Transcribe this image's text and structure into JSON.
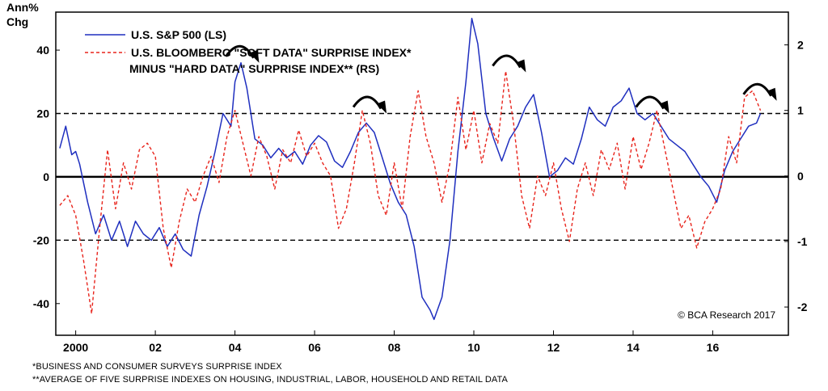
{
  "chart_data": {
    "type": "line",
    "left_axis": {
      "label_line1": "Ann%",
      "label_line2": "Chg",
      "ylim": [
        -50,
        52
      ],
      "ticks": [
        40,
        20,
        0,
        -20,
        -40
      ]
    },
    "right_axis": {
      "ylim": [
        -2.4307,
        2.5
      ],
      "ticks": [
        2,
        1,
        0,
        -1,
        -2
      ]
    },
    "x_axis": {
      "xlim": [
        1999.5,
        2017.9
      ],
      "tick_labels": [
        {
          "x": 2000,
          "label": "2000"
        },
        {
          "x": 2002,
          "label": "02"
        },
        {
          "x": 2004,
          "label": "04"
        },
        {
          "x": 2006,
          "label": "06"
        },
        {
          "x": 2008,
          "label": "08"
        },
        {
          "x": 2010,
          "label": "10"
        },
        {
          "x": 2012,
          "label": "12"
        },
        {
          "x": 2014,
          "label": "14"
        },
        {
          "x": 2016,
          "label": "16"
        }
      ]
    },
    "reference_lines": {
      "left_axis_values": [
        20,
        0,
        -20
      ]
    },
    "series": [
      {
        "name": "U.S. S&P 500 (LS)",
        "axis": "left",
        "color": "#1f2fbf",
        "style": "solid",
        "points": [
          [
            1999.6,
            9
          ],
          [
            1999.75,
            16
          ],
          [
            1999.9,
            7
          ],
          [
            2000.0,
            8
          ],
          [
            2000.1,
            4
          ],
          [
            2000.3,
            -8
          ],
          [
            2000.5,
            -18
          ],
          [
            2000.7,
            -12
          ],
          [
            2000.9,
            -20
          ],
          [
            2001.1,
            -14
          ],
          [
            2001.3,
            -22
          ],
          [
            2001.5,
            -14
          ],
          [
            2001.7,
            -18
          ],
          [
            2001.9,
            -20
          ],
          [
            2002.1,
            -16
          ],
          [
            2002.3,
            -22
          ],
          [
            2002.5,
            -18
          ],
          [
            2002.7,
            -23
          ],
          [
            2002.9,
            -25
          ],
          [
            2003.1,
            -12
          ],
          [
            2003.3,
            -3
          ],
          [
            2003.5,
            8
          ],
          [
            2003.7,
            20
          ],
          [
            2003.9,
            16
          ],
          [
            2004.0,
            30
          ],
          [
            2004.15,
            36
          ],
          [
            2004.3,
            28
          ],
          [
            2004.5,
            12
          ],
          [
            2004.7,
            10
          ],
          [
            2004.9,
            6
          ],
          [
            2005.1,
            9
          ],
          [
            2005.3,
            6
          ],
          [
            2005.5,
            8
          ],
          [
            2005.7,
            4
          ],
          [
            2005.9,
            10
          ],
          [
            2006.1,
            13
          ],
          [
            2006.3,
            11
          ],
          [
            2006.5,
            5
          ],
          [
            2006.7,
            3
          ],
          [
            2006.9,
            8
          ],
          [
            2007.1,
            14
          ],
          [
            2007.3,
            17
          ],
          [
            2007.5,
            14
          ],
          [
            2007.7,
            6
          ],
          [
            2007.9,
            -2
          ],
          [
            2008.1,
            -8
          ],
          [
            2008.3,
            -12
          ],
          [
            2008.5,
            -22
          ],
          [
            2008.7,
            -38
          ],
          [
            2008.9,
            -42
          ],
          [
            2009.0,
            -45
          ],
          [
            2009.2,
            -38
          ],
          [
            2009.4,
            -20
          ],
          [
            2009.6,
            8
          ],
          [
            2009.8,
            30
          ],
          [
            2009.95,
            50
          ],
          [
            2010.1,
            42
          ],
          [
            2010.3,
            20
          ],
          [
            2010.5,
            12
          ],
          [
            2010.7,
            5
          ],
          [
            2010.9,
            12
          ],
          [
            2011.1,
            16
          ],
          [
            2011.3,
            22
          ],
          [
            2011.5,
            26
          ],
          [
            2011.7,
            14
          ],
          [
            2011.9,
            0
          ],
          [
            2012.1,
            2
          ],
          [
            2012.3,
            6
          ],
          [
            2012.5,
            4
          ],
          [
            2012.7,
            12
          ],
          [
            2012.9,
            22
          ],
          [
            2013.1,
            18
          ],
          [
            2013.3,
            16
          ],
          [
            2013.5,
            22
          ],
          [
            2013.7,
            24
          ],
          [
            2013.9,
            28
          ],
          [
            2014.1,
            20
          ],
          [
            2014.3,
            18
          ],
          [
            2014.5,
            20
          ],
          [
            2014.7,
            16
          ],
          [
            2014.9,
            12
          ],
          [
            2015.1,
            10
          ],
          [
            2015.3,
            8
          ],
          [
            2015.5,
            4
          ],
          [
            2015.7,
            0
          ],
          [
            2015.9,
            -3
          ],
          [
            2016.1,
            -8
          ],
          [
            2016.3,
            2
          ],
          [
            2016.5,
            8
          ],
          [
            2016.7,
            12
          ],
          [
            2016.9,
            16
          ],
          [
            2017.1,
            17
          ],
          [
            2017.2,
            20
          ]
        ]
      },
      {
        "name": "U.S. BLOOMBERG \"SOFT DATA\" SURPRISE INDEX* MINUS \"HARD DATA\" SURPRISE INDEX** (RS)",
        "axis": "right",
        "color": "#e8241c",
        "style": "dashed",
        "points": [
          [
            1999.6,
            -0.45
          ],
          [
            1999.8,
            -0.3
          ],
          [
            2000.0,
            -0.6
          ],
          [
            2000.2,
            -1.3
          ],
          [
            2000.4,
            -2.1
          ],
          [
            2000.6,
            -0.8
          ],
          [
            2000.8,
            0.4
          ],
          [
            2001.0,
            -0.5
          ],
          [
            2001.2,
            0.2
          ],
          [
            2001.4,
            -0.2
          ],
          [
            2001.6,
            0.4
          ],
          [
            2001.8,
            0.5
          ],
          [
            2002.0,
            0.3
          ],
          [
            2002.2,
            -0.8
          ],
          [
            2002.4,
            -1.4
          ],
          [
            2002.6,
            -0.7
          ],
          [
            2002.8,
            -0.2
          ],
          [
            2003.0,
            -0.4
          ],
          [
            2003.2,
            0.0
          ],
          [
            2003.4,
            0.3
          ],
          [
            2003.6,
            -0.1
          ],
          [
            2003.8,
            0.6
          ],
          [
            2004.0,
            1.0
          ],
          [
            2004.2,
            0.5
          ],
          [
            2004.4,
            0.0
          ],
          [
            2004.6,
            0.6
          ],
          [
            2004.8,
            0.3
          ],
          [
            2005.0,
            -0.2
          ],
          [
            2005.2,
            0.4
          ],
          [
            2005.4,
            0.2
          ],
          [
            2005.6,
            0.7
          ],
          [
            2005.8,
            0.3
          ],
          [
            2006.0,
            0.5
          ],
          [
            2006.2,
            0.2
          ],
          [
            2006.4,
            0.0
          ],
          [
            2006.6,
            -0.8
          ],
          [
            2006.8,
            -0.5
          ],
          [
            2007.0,
            0.2
          ],
          [
            2007.2,
            1.0
          ],
          [
            2007.4,
            0.5
          ],
          [
            2007.6,
            -0.3
          ],
          [
            2007.8,
            -0.6
          ],
          [
            2008.0,
            0.2
          ],
          [
            2008.2,
            -0.5
          ],
          [
            2008.4,
            0.6
          ],
          [
            2008.6,
            1.3
          ],
          [
            2008.8,
            0.6
          ],
          [
            2009.0,
            0.2
          ],
          [
            2009.2,
            -0.4
          ],
          [
            2009.4,
            0.2
          ],
          [
            2009.6,
            1.2
          ],
          [
            2009.8,
            0.4
          ],
          [
            2010.0,
            1.0
          ],
          [
            2010.2,
            0.2
          ],
          [
            2010.4,
            0.8
          ],
          [
            2010.6,
            0.5
          ],
          [
            2010.8,
            1.6
          ],
          [
            2011.0,
            0.8
          ],
          [
            2011.2,
            -0.3
          ],
          [
            2011.4,
            -0.8
          ],
          [
            2011.6,
            0.0
          ],
          [
            2011.8,
            -0.3
          ],
          [
            2012.0,
            0.2
          ],
          [
            2012.2,
            -0.5
          ],
          [
            2012.4,
            -1.0
          ],
          [
            2012.6,
            -0.2
          ],
          [
            2012.8,
            0.2
          ],
          [
            2013.0,
            -0.3
          ],
          [
            2013.2,
            0.4
          ],
          [
            2013.4,
            0.1
          ],
          [
            2013.6,
            0.5
          ],
          [
            2013.8,
            -0.2
          ],
          [
            2014.0,
            0.6
          ],
          [
            2014.2,
            0.1
          ],
          [
            2014.4,
            0.5
          ],
          [
            2014.6,
            1.0
          ],
          [
            2014.8,
            0.4
          ],
          [
            2015.0,
            -0.2
          ],
          [
            2015.2,
            -0.8
          ],
          [
            2015.4,
            -0.6
          ],
          [
            2015.6,
            -1.1
          ],
          [
            2015.8,
            -0.7
          ],
          [
            2016.0,
            -0.5
          ],
          [
            2016.2,
            -0.2
          ],
          [
            2016.4,
            0.6
          ],
          [
            2016.6,
            0.2
          ],
          [
            2016.8,
            1.2
          ],
          [
            2017.0,
            1.3
          ],
          [
            2017.2,
            1.0
          ]
        ]
      }
    ],
    "annotations": [
      {
        "type": "curved-arrow",
        "x": 2004.1,
        "y": 36
      },
      {
        "type": "curved-arrow",
        "x": 2007.3,
        "y": 20
      },
      {
        "type": "curved-arrow",
        "x": 2010.8,
        "y": 33
      },
      {
        "type": "curved-arrow",
        "x": 2014.4,
        "y": 20
      },
      {
        "type": "curved-arrow",
        "x": 2017.1,
        "y": 24
      }
    ],
    "legend": {
      "placement": "top-left",
      "items": [
        {
          "lines": [
            "U.S. S&P 500 (LS)"
          ],
          "color": "#1f2fbf",
          "style": "solid"
        },
        {
          "lines": [
            "U.S. BLOOMBERG \"SOFT DATA\" SURPRISE INDEX*",
            "MINUS \"HARD DATA\" SURPRISE INDEX** (RS)"
          ],
          "color": "#e8241c",
          "style": "dashed"
        }
      ]
    },
    "credit": "© BCA Research 2017"
  },
  "footnotes": {
    "line1": "*BUSINESS AND CONSUMER SURVEYS SURPRISE INDEX",
    "line2": "**AVERAGE OF FIVE SURPRISE INDEXES ON HOUSING, INDUSTRIAL, LABOR, HOUSEHOLD AND RETAIL DATA"
  }
}
